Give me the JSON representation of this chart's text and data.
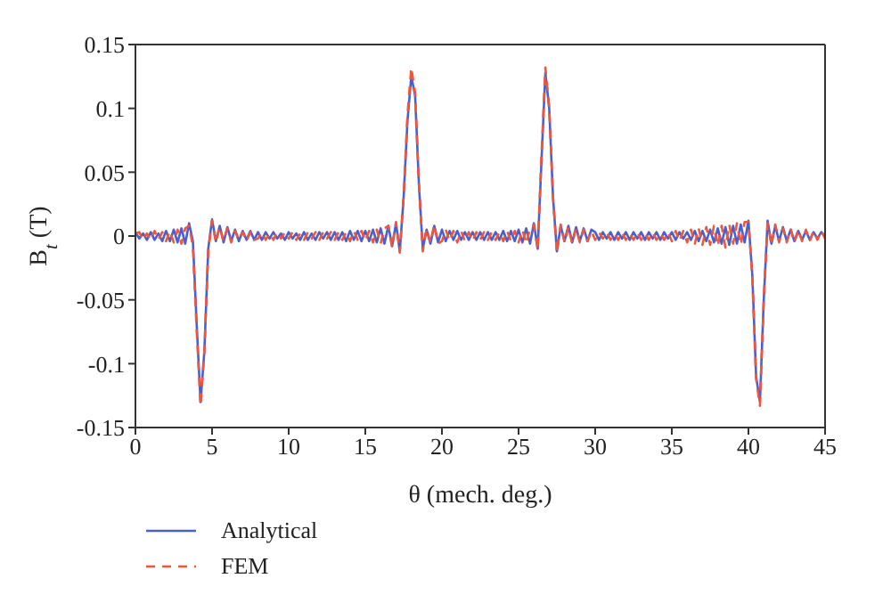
{
  "chart_data": {
    "type": "line",
    "xlabel": "θ (mech. deg.)",
    "ylabel": "B$_{t}$ (T)",
    "x": [
      0,
      0.25,
      0.5,
      0.75,
      1,
      1.25,
      1.5,
      1.75,
      2,
      2.25,
      2.5,
      2.75,
      3,
      3.25,
      3.5,
      3.75,
      4,
      4.25,
      4.5,
      4.75,
      5,
      5.25,
      5.5,
      5.75,
      6,
      6.25,
      6.5,
      6.75,
      7,
      7.25,
      7.5,
      7.75,
      8,
      8.25,
      8.5,
      8.75,
      9,
      9.25,
      9.5,
      9.75,
      10,
      10.25,
      10.5,
      10.75,
      11,
      11.25,
      11.5,
      11.75,
      12,
      12.25,
      12.5,
      12.75,
      13,
      13.25,
      13.5,
      13.75,
      14,
      14.25,
      14.5,
      14.75,
      15,
      15.25,
      15.5,
      15.75,
      16,
      16.25,
      16.5,
      16.75,
      17,
      17.25,
      17.5,
      17.75,
      18,
      18.25,
      18.5,
      18.75,
      19,
      19.25,
      19.5,
      19.75,
      20,
      20.25,
      20.5,
      20.75,
      21,
      21.25,
      21.5,
      21.75,
      22,
      22.25,
      22.5,
      22.75,
      23,
      23.25,
      23.5,
      23.75,
      24,
      24.25,
      24.5,
      24.75,
      25,
      25.25,
      25.5,
      25.75,
      26,
      26.25,
      26.5,
      26.75,
      27,
      27.25,
      27.5,
      27.75,
      28,
      28.25,
      28.5,
      28.75,
      29,
      29.25,
      29.5,
      29.75,
      30,
      30.25,
      30.5,
      30.75,
      31,
      31.25,
      31.5,
      31.75,
      32,
      32.25,
      32.5,
      32.75,
      33,
      33.25,
      33.5,
      33.75,
      34,
      34.25,
      34.5,
      34.75,
      35,
      35.25,
      35.5,
      35.75,
      36,
      36.25,
      36.5,
      36.75,
      37,
      37.25,
      37.5,
      37.75,
      38,
      38.25,
      38.5,
      38.75,
      39,
      39.25,
      39.5,
      39.75,
      40,
      40.25,
      40.5,
      40.75,
      41,
      41.25,
      41.5,
      41.75,
      42,
      42.25,
      42.5,
      42.75,
      43,
      43.25,
      43.5,
      43.75,
      44,
      44.25,
      44.5,
      44.75,
      45
    ],
    "series": [
      {
        "name": "Analytical",
        "color": "#4a5fd0",
        "line_style": "solid",
        "values": [
          0.003,
          -0.002,
          0.002,
          -0.003,
          0.003,
          -0.003,
          0.002,
          -0.004,
          0.004,
          -0.004,
          0.005,
          -0.005,
          0.006,
          -0.006,
          0.01,
          -0.004,
          -0.07,
          -0.13,
          -0.09,
          -0.01,
          0.013,
          -0.004,
          0.008,
          -0.005,
          0.007,
          -0.004,
          0.005,
          -0.004,
          0.004,
          -0.003,
          0.004,
          -0.003,
          0.003,
          -0.003,
          0.003,
          -0.002,
          0.003,
          -0.002,
          0.002,
          -0.003,
          0.003,
          -0.002,
          0.002,
          -0.003,
          0.003,
          -0.003,
          0.002,
          -0.003,
          0.003,
          -0.002,
          0.003,
          -0.003,
          0.003,
          -0.003,
          0.003,
          -0.004,
          0.004,
          -0.003,
          0.004,
          -0.004,
          0.004,
          -0.004,
          0.005,
          -0.005,
          0.006,
          -0.006,
          0.008,
          -0.008,
          0.01,
          -0.012,
          0.03,
          0.09,
          0.125,
          0.11,
          0.04,
          -0.01,
          0.005,
          -0.006,
          0.008,
          -0.005,
          0.005,
          -0.004,
          0.004,
          -0.003,
          0.004,
          -0.003,
          0.003,
          -0.003,
          0.003,
          -0.003,
          0.003,
          -0.003,
          0.003,
          -0.003,
          0.003,
          -0.003,
          0.004,
          -0.004,
          0.004,
          -0.004,
          0.005,
          -0.005,
          0.006,
          -0.006,
          0.01,
          -0.01,
          0.06,
          0.128,
          0.1,
          0.03,
          -0.012,
          0.008,
          -0.004,
          0.008,
          -0.005,
          0.007,
          -0.004,
          0.006,
          -0.004,
          0.005,
          0.003,
          -0.003,
          0.003,
          -0.002,
          0.003,
          -0.003,
          0.003,
          -0.002,
          0.003,
          -0.003,
          0.003,
          -0.002,
          0.003,
          -0.003,
          0.003,
          -0.002,
          0.003,
          -0.003,
          0.003,
          -0.002,
          0.003,
          -0.003,
          0.003,
          -0.002,
          0.003,
          -0.003,
          0.004,
          -0.004,
          0.004,
          -0.004,
          0.005,
          -0.005,
          0.006,
          -0.006,
          0.007,
          -0.007,
          0.008,
          -0.006,
          0.009,
          -0.005,
          0.012,
          -0.03,
          -0.11,
          -0.13,
          -0.05,
          0.012,
          -0.006,
          0.008,
          -0.004,
          0.007,
          -0.004,
          0.005,
          -0.004,
          0.004,
          -0.003,
          0.004,
          -0.003,
          0.003,
          -0.002,
          0.003,
          0
        ]
      },
      {
        "name": "FEM",
        "color": "#f2563a",
        "line_style": "dashed",
        "values": [
          0.002,
          0.003,
          -0.003,
          0.002,
          -0.003,
          0.004,
          -0.003,
          0.003,
          -0.004,
          0.004,
          -0.005,
          0.005,
          -0.006,
          0.006,
          0.008,
          -0.008,
          -0.075,
          -0.133,
          -0.09,
          -0.012,
          0.012,
          -0.005,
          0.007,
          -0.004,
          0.006,
          -0.005,
          0.004,
          -0.003,
          0.003,
          -0.004,
          0.003,
          -0.003,
          -0.002,
          0.003,
          -0.003,
          0.002,
          -0.003,
          0.003,
          -0.002,
          0.003,
          -0.002,
          0.003,
          -0.003,
          0.002,
          -0.003,
          0.003,
          -0.002,
          0.003,
          -0.003,
          0.003,
          -0.002,
          0.003,
          -0.003,
          0.003,
          -0.003,
          0.003,
          -0.004,
          0.004,
          -0.003,
          0.004,
          -0.004,
          0.004,
          -0.005,
          0.005,
          -0.006,
          0.006,
          0.008,
          -0.009,
          0.011,
          -0.013,
          0.032,
          0.095,
          0.132,
          0.112,
          0.04,
          -0.012,
          0.006,
          -0.005,
          0.009,
          -0.006,
          -0.004,
          0.005,
          -0.004,
          0.004,
          -0.005,
          0.004,
          -0.004,
          0.003,
          -0.004,
          0.003,
          -0.003,
          0.003,
          -0.003,
          0.003,
          -0.003,
          0.003,
          -0.004,
          0.004,
          -0.004,
          0.004,
          -0.005,
          0.005,
          -0.006,
          0.006,
          0.009,
          -0.011,
          0.065,
          0.132,
          0.1,
          0.03,
          -0.013,
          0.009,
          -0.005,
          0.007,
          -0.006,
          0.006,
          -0.005,
          0.005,
          -0.004,
          0.004,
          -0.003,
          0.003,
          -0.002,
          0.003,
          -0.003,
          0.002,
          -0.003,
          0.003,
          -0.003,
          0.002,
          -0.003,
          0.003,
          -0.003,
          0.002,
          -0.003,
          0.003,
          -0.003,
          0.002,
          -0.003,
          0.003,
          -0.004,
          0.004,
          -0.004,
          0.004,
          -0.005,
          0.005,
          -0.006,
          0.006,
          -0.007,
          0.007,
          -0.007,
          0.008,
          -0.008,
          0.008,
          -0.009,
          0.009,
          -0.006,
          0.01,
          -0.007,
          0.011,
          0.011,
          -0.032,
          -0.112,
          -0.133,
          -0.05,
          0.01,
          -0.007,
          0.009,
          -0.005,
          0.006,
          -0.005,
          0.006,
          -0.005,
          0.005,
          -0.004,
          0.005,
          -0.004,
          0.004,
          -0.003,
          0.004,
          -0.002
        ]
      }
    ],
    "xlim": [
      0,
      45
    ],
    "xticks": [
      0,
      5,
      10,
      15,
      20,
      25,
      30,
      35,
      40,
      45
    ],
    "ylim": [
      -0.15,
      0.15
    ],
    "yticks": [
      -0.15,
      -0.1,
      -0.05,
      0,
      0.05,
      0.1,
      0.15
    ],
    "grid": false,
    "legend": "bottom left",
    "marker": "none"
  }
}
